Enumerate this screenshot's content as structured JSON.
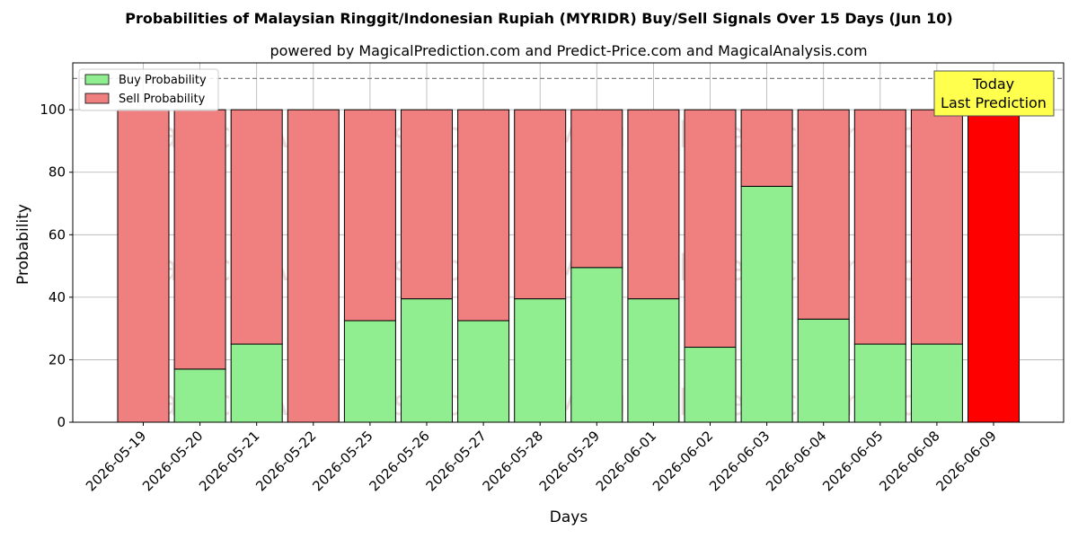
{
  "chart_data": {
    "type": "bar",
    "stacked": true,
    "title": "Probabilities of Malaysian Ringgit/Indonesian Rupiah (MYRIDR) Buy/Sell Signals Over 15 Days (Jun 10)",
    "subtitle": "powered by MagicalPrediction.com and Predict-Price.com and MagicalAnalysis.com",
    "xlabel": "Days",
    "ylabel": "Probability",
    "ylim": [
      0,
      115
    ],
    "yticks": [
      0,
      20,
      40,
      60,
      80,
      100
    ],
    "grid": true,
    "legend_position": "top-left",
    "reference_line": 110,
    "categories": [
      "2026-05-19",
      "2026-05-20",
      "2026-05-21",
      "2026-05-22",
      "2026-05-25",
      "2026-05-26",
      "2026-05-27",
      "2026-05-28",
      "2026-05-29",
      "2026-06-01",
      "2026-06-02",
      "2026-06-03",
      "2026-06-04",
      "2026-06-05",
      "2026-06-08",
      "2026-06-09"
    ],
    "series": [
      {
        "name": "Buy Probability",
        "color": "#90ee90",
        "values": [
          0,
          17,
          25,
          0,
          32.5,
          39.5,
          32.5,
          39.5,
          49.5,
          39.5,
          24,
          75.5,
          33,
          25,
          25,
          0
        ]
      },
      {
        "name": "Sell Probability",
        "color": "#f08080",
        "values": [
          100,
          83,
          75,
          100,
          67.5,
          60.5,
          67.5,
          60.5,
          50.5,
          60.5,
          76,
          24.5,
          67,
          75,
          75,
          100
        ]
      }
    ],
    "highlight": {
      "index": 15,
      "color": "#ff0000"
    },
    "annotation": {
      "lines": [
        "Today",
        "Last Prediction"
      ],
      "background": "#ffff4d"
    },
    "watermarks": [
      "MagicalAnalysis.com",
      "MagicalPrediction.com"
    ]
  }
}
